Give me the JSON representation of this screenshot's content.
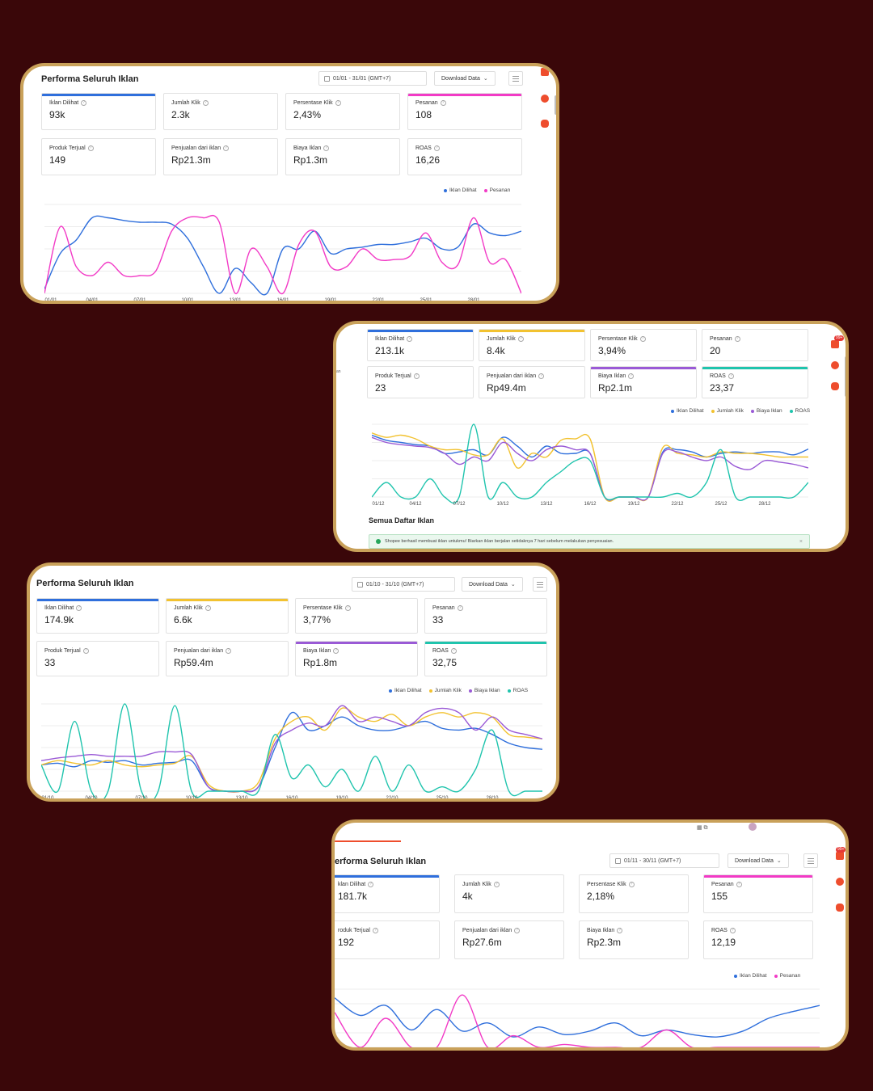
{
  "colors": {
    "background": "#3a0709",
    "frame": "#c9a15a",
    "iklan_dilihat": "#2f6fdc",
    "pesanan": "#f23ac6",
    "jumlah_klik": "#f2c230",
    "biaya_iklan": "#9a5ad6",
    "roas": "#1fc4ad"
  },
  "panels": [
    {
      "title": "Performa Seluruh Iklan",
      "date_range": "01/01 - 31/01 (GMT+7)",
      "download_label": "Download Data",
      "metrics": [
        {
          "label": "Iklan Dilihat",
          "value": "93k",
          "highlight": "iklan_dilihat"
        },
        {
          "label": "Jumlah Klik",
          "value": "2.3k",
          "highlight": ""
        },
        {
          "label": "Persentase Klik",
          "value": "2,43%",
          "highlight": ""
        },
        {
          "label": "Pesanan",
          "value": "108",
          "highlight": "pesanan"
        },
        {
          "label": "Produk Terjual",
          "value": "149",
          "highlight": ""
        },
        {
          "label": "Penjualan dari iklan",
          "value": "Rp21.3m",
          "highlight": ""
        },
        {
          "label": "Biaya Iklan",
          "value": "Rp1.3m",
          "highlight": ""
        },
        {
          "label": "ROAS",
          "value": "16,26",
          "highlight": ""
        }
      ],
      "legend": [
        "Iklan Dilihat",
        "Pesanan"
      ],
      "x_ticks": [
        "01/01",
        "04/01",
        "07/01",
        "10/01",
        "13/01",
        "16/01",
        "19/01",
        "22/01",
        "25/01",
        "28/01"
      ]
    },
    {
      "metrics": [
        {
          "label": "Iklan Dilihat",
          "value": "213.1k",
          "highlight": "iklan_dilihat"
        },
        {
          "label": "Jumlah Klik",
          "value": "8.4k",
          "highlight": "jumlah_klik"
        },
        {
          "label": "Persentase Klik",
          "value": "3,94%",
          "highlight": ""
        },
        {
          "label": "Pesanan",
          "value": "20",
          "highlight": ""
        },
        {
          "label": "Produk Terjual",
          "value": "23",
          "highlight": ""
        },
        {
          "label": "Penjualan dari iklan",
          "value": "Rp49.4m",
          "highlight": ""
        },
        {
          "label": "Biaya Iklan",
          "value": "Rp2.1m",
          "highlight": "biaya_iklan"
        },
        {
          "label": "ROAS",
          "value": "23,37",
          "highlight": "roas"
        }
      ],
      "legend": [
        "Iklan Dilihat",
        "Jumlah Klik",
        "Biaya Iklan",
        "ROAS"
      ],
      "x_ticks": [
        "01/12",
        "04/12",
        "07/12",
        "10/12",
        "13/12",
        "16/12",
        "19/12",
        "22/12",
        "25/12",
        "28/12"
      ],
      "section_title": "Semua Daftar Iklan",
      "notice": "Shopee berhasil membuat iklan untukmu! Biarkan iklan berjalan setidaknya 7 hari sebelum melakukan penyesuaian."
    },
    {
      "title": "Performa Seluruh Iklan",
      "date_range": "01/10 - 31/10 (GMT+7)",
      "download_label": "Download Data",
      "metrics": [
        {
          "label": "Iklan Dilihat",
          "value": "174.9k",
          "highlight": "iklan_dilihat"
        },
        {
          "label": "Jumlah Klik",
          "value": "6.6k",
          "highlight": "jumlah_klik"
        },
        {
          "label": "Persentase Klik",
          "value": "3,77%",
          "highlight": ""
        },
        {
          "label": "Pesanan",
          "value": "33",
          "highlight": ""
        },
        {
          "label": "Produk Terjual",
          "value": "33",
          "highlight": ""
        },
        {
          "label": "Penjualan dari iklan",
          "value": "Rp59.4m",
          "highlight": ""
        },
        {
          "label": "Biaya Iklan",
          "value": "Rp1.8m",
          "highlight": "biaya_iklan"
        },
        {
          "label": "ROAS",
          "value": "32,75",
          "highlight": "roas"
        }
      ],
      "legend": [
        "Iklan Dilihat",
        "Jumlah Klik",
        "Biaya Iklan",
        "ROAS"
      ],
      "x_ticks": [
        "01/10",
        "04/10",
        "07/10",
        "10/10",
        "13/10",
        "16/10",
        "19/10",
        "22/10",
        "25/10",
        "28/10"
      ]
    },
    {
      "title": "erforma Seluruh Iklan",
      "date_range": "01/11 - 30/11 (GMT+7)",
      "download_label": "Download Data",
      "badge": "99+",
      "metrics": [
        {
          "label": "klan Dilihat",
          "value": "181.7k",
          "highlight": "iklan_dilihat"
        },
        {
          "label": "Jumlah Klik",
          "value": "4k",
          "highlight": ""
        },
        {
          "label": "Persentase Klik",
          "value": "2,18%",
          "highlight": ""
        },
        {
          "label": "Pesanan",
          "value": "155",
          "highlight": "pesanan"
        },
        {
          "label": "roduk Terjual",
          "value": "192",
          "highlight": ""
        },
        {
          "label": "Penjualan dari iklan",
          "value": "Rp27.6m",
          "highlight": ""
        },
        {
          "label": "Biaya Iklan",
          "value": "Rp2.3m",
          "highlight": ""
        },
        {
          "label": "ROAS",
          "value": "12,19",
          "highlight": ""
        }
      ],
      "legend": [
        "Iklan Dilihat",
        "Pesanan"
      ]
    }
  ],
  "chart_data": [
    {
      "type": "line",
      "x": [
        "01/01",
        "02/01",
        "03/01",
        "04/01",
        "05/01",
        "06/01",
        "07/01",
        "08/01",
        "09/01",
        "10/01",
        "11/01",
        "12/01",
        "13/01",
        "14/01",
        "15/01",
        "16/01",
        "17/01",
        "18/01",
        "19/01",
        "20/01",
        "21/01",
        "22/01",
        "23/01",
        "24/01",
        "25/01",
        "26/01",
        "27/01",
        "28/01",
        "29/01",
        "30/01",
        "31/01"
      ],
      "series": [
        {
          "name": "Iklan Dilihat",
          "values": [
            0.05,
            0.45,
            0.6,
            0.85,
            0.85,
            0.82,
            0.8,
            0.8,
            0.78,
            0.62,
            0.3,
            0.0,
            0.28,
            0.12,
            0.0,
            0.5,
            0.5,
            0.7,
            0.45,
            0.5,
            0.52,
            0.55,
            0.55,
            0.58,
            0.62,
            0.5,
            0.52,
            0.78,
            0.68,
            0.65,
            0.7
          ]
        },
        {
          "name": "Pesanan",
          "values": [
            0.0,
            0.75,
            0.3,
            0.2,
            0.35,
            0.2,
            0.2,
            0.25,
            0.7,
            0.85,
            0.85,
            0.8,
            0.0,
            0.5,
            0.3,
            0.0,
            0.55,
            0.7,
            0.3,
            0.3,
            0.5,
            0.38,
            0.38,
            0.42,
            0.68,
            0.35,
            0.32,
            0.85,
            0.35,
            0.38,
            0.0
          ]
        }
      ]
    },
    {
      "type": "line",
      "x": [
        "01/12",
        "02/12",
        "03/12",
        "04/12",
        "05/12",
        "06/12",
        "07/12",
        "08/12",
        "09/12",
        "10/12",
        "11/12",
        "12/12",
        "13/12",
        "14/12",
        "15/12",
        "16/12",
        "17/12",
        "18/12",
        "19/12",
        "20/12",
        "21/12",
        "22/12",
        "23/12",
        "24/12",
        "25/12",
        "26/12",
        "27/12",
        "28/12",
        "29/12",
        "30/12",
        "31/12"
      ],
      "series": [
        {
          "name": "Iklan Dilihat",
          "values": [
            0.85,
            0.78,
            0.75,
            0.72,
            0.7,
            0.6,
            0.62,
            0.65,
            0.58,
            0.82,
            0.7,
            0.55,
            0.7,
            0.6,
            0.6,
            0.6,
            0.0,
            0.0,
            0.0,
            0.0,
            0.62,
            0.65,
            0.62,
            0.55,
            0.6,
            0.62,
            0.6,
            0.62,
            0.62,
            0.58,
            0.66
          ]
        },
        {
          "name": "Jumlah Klik",
          "values": [
            0.88,
            0.82,
            0.85,
            0.8,
            0.7,
            0.65,
            0.65,
            0.58,
            0.58,
            0.8,
            0.4,
            0.6,
            0.55,
            0.78,
            0.8,
            0.8,
            0.0,
            0.0,
            0.0,
            0.0,
            0.68,
            0.6,
            0.58,
            0.55,
            0.62,
            0.6,
            0.6,
            0.58,
            0.55,
            0.55,
            0.55
          ]
        },
        {
          "name": "Biaya Iklan",
          "values": [
            0.82,
            0.75,
            0.72,
            0.7,
            0.68,
            0.6,
            0.45,
            0.55,
            0.5,
            0.75,
            0.6,
            0.5,
            0.65,
            0.7,
            0.65,
            0.6,
            0.0,
            0.0,
            0.0,
            0.0,
            0.6,
            0.62,
            0.55,
            0.5,
            0.55,
            0.42,
            0.38,
            0.5,
            0.48,
            0.45,
            0.4
          ]
        },
        {
          "name": "ROAS",
          "values": [
            0.0,
            0.2,
            0.0,
            0.0,
            0.25,
            0.0,
            0.0,
            1.0,
            0.0,
            0.2,
            0.0,
            0.0,
            0.2,
            0.35,
            0.5,
            0.5,
            0.0,
            0.0,
            0.0,
            0.0,
            0.0,
            0.05,
            0.0,
            0.2,
            0.65,
            0.0,
            0.0,
            0.0,
            0.0,
            0.0,
            0.2
          ]
        }
      ]
    },
    {
      "type": "line",
      "x": [
        "01/10",
        "02/10",
        "03/10",
        "04/10",
        "05/10",
        "06/10",
        "07/10",
        "08/10",
        "09/10",
        "10/10",
        "11/10",
        "12/10",
        "13/10",
        "14/10",
        "15/10",
        "16/10",
        "17/10",
        "18/10",
        "19/10",
        "20/10",
        "21/10",
        "22/10",
        "23/10",
        "24/10",
        "25/10",
        "26/10",
        "27/10",
        "28/10",
        "29/10",
        "30/10",
        "31/10"
      ],
      "series": [
        {
          "name": "Iklan Dilihat",
          "values": [
            0.3,
            0.32,
            0.28,
            0.35,
            0.33,
            0.35,
            0.3,
            0.32,
            0.33,
            0.35,
            0.05,
            0.0,
            0.0,
            0.05,
            0.5,
            0.9,
            0.7,
            0.75,
            0.85,
            0.75,
            0.7,
            0.7,
            0.75,
            0.8,
            0.72,
            0.7,
            0.72,
            0.65,
            0.55,
            0.5,
            0.48
          ]
        },
        {
          "name": "Jumlah Klik",
          "values": [
            0.3,
            0.35,
            0.32,
            0.3,
            0.35,
            0.3,
            0.28,
            0.3,
            0.32,
            0.4,
            0.08,
            0.0,
            0.0,
            0.1,
            0.6,
            0.8,
            0.85,
            0.7,
            0.95,
            0.85,
            0.8,
            0.88,
            0.75,
            0.85,
            0.9,
            0.85,
            0.9,
            0.85,
            0.65,
            0.62,
            0.6
          ]
        },
        {
          "name": "Biaya Iklan",
          "values": [
            0.35,
            0.38,
            0.4,
            0.42,
            0.4,
            0.4,
            0.4,
            0.45,
            0.45,
            0.42,
            0.05,
            0.0,
            0.0,
            0.05,
            0.55,
            0.7,
            0.78,
            0.75,
            0.98,
            0.8,
            0.85,
            0.8,
            0.75,
            0.9,
            0.95,
            0.9,
            0.7,
            0.85,
            0.7,
            0.65,
            0.6
          ]
        },
        {
          "name": "ROAS",
          "values": [
            0.3,
            0.0,
            0.8,
            0.0,
            0.0,
            1.0,
            0.0,
            0.0,
            0.98,
            0.0,
            0.0,
            0.0,
            0.0,
            0.0,
            0.65,
            0.15,
            0.3,
            0.05,
            0.25,
            0.0,
            0.4,
            0.0,
            0.3,
            0.0,
            0.05,
            0.0,
            0.25,
            0.7,
            0.0,
            0.0,
            0.0
          ]
        }
      ]
    },
    {
      "type": "line",
      "x": [
        "01/11",
        "02/11",
        "03/11",
        "04/11",
        "05/11",
        "06/11",
        "07/11",
        "08/11",
        "09/11",
        "10/11",
        "11/11",
        "12/11",
        "13/11",
        "14/11",
        "15/11",
        "16/11",
        "17/11",
        "18/11",
        "19/11",
        "20/11"
      ],
      "series": [
        {
          "name": "Iklan Dilihat",
          "values": [
            0.85,
            0.55,
            0.72,
            0.3,
            0.65,
            0.28,
            0.42,
            0.18,
            0.35,
            0.22,
            0.28,
            0.42,
            0.2,
            0.3,
            0.22,
            0.18,
            0.28,
            0.5,
            0.62,
            0.72
          ]
        },
        {
          "name": "Pesanan",
          "values": [
            0.6,
            0.0,
            0.5,
            0.0,
            0.0,
            0.9,
            0.0,
            0.2,
            0.0,
            0.05,
            0.0,
            0.0,
            0.0,
            0.3,
            0.0,
            0.0,
            0.0,
            0.0,
            0.0,
            0.0
          ]
        }
      ]
    }
  ]
}
